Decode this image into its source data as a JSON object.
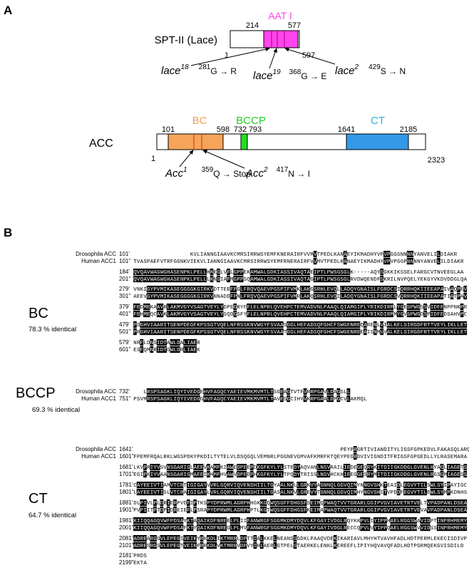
{
  "panelA": {
    "label": "A",
    "spt": {
      "name": "SPT-II (Lace)",
      "domain": "AAT I",
      "start": "1",
      "domainStart": "214",
      "domainEnd": "577",
      "end": "597",
      "mutants": [
        {
          "allele": "lace",
          "sup": "18",
          "pos": "281",
          "change": "G → R"
        },
        {
          "allele": "lace",
          "sup": "19",
          "pos": "368",
          "change": "G → E"
        },
        {
          "allele": "lace",
          "sup": "2",
          "pos": "429",
          "change": "S → N"
        }
      ]
    },
    "acc": {
      "name": "ACC",
      "domains": [
        "BC",
        "BCCP",
        "CT"
      ],
      "start": "1",
      "end": "2323",
      "boundaries": [
        "101",
        "598",
        "732",
        "793",
        "1641",
        "2185"
      ],
      "mutants": [
        {
          "allele": "Acc",
          "sup": "1",
          "pos": "359",
          "change": "Q → Stop"
        },
        {
          "allele": "Acc",
          "sup": "2",
          "pos": "417",
          "change": "N → I"
        }
      ]
    }
  },
  "panelB": {
    "label": "B",
    "sections": [
      {
        "domain": "BC",
        "identity": "78.3 % identical",
        "species": [
          "Drosophila ACC",
          "Human ACC1"
        ],
        "blocks": [
          [
            {
              "num": "101'",
              "seq": "                 KVLIANNGIAAVKCMRSIRRWSYEMFKNERAIRFVVMVTPEDLKANAEYIKMADHYVPVPGGSNNNNYANVELILDIAKR"
            },
            {
              "num": "101\"",
              "seq": "TVASPAEFVTRFGGNKVIEKVLIANNGIAAVKCMRSIRRWSYEMFRNERAIRFVVMVTPEDLKANAEYIKMADHYVPVPGGPNNNNYANVELILDIAKR"
            }
          ],
          [
            {
              "num": "184'",
              "seq": "QVQAVWAGWGHASENPKLPELLHKEGLVFLGPPEKAMWALGDKIASSIVAQTAEIPTLPWSGSGLK-----AQYSGKKIKSSELFARGCVTNVEEGLAA"
            },
            {
              "num": "201\"",
              "seq": "QVQAVWAGWGHASENPKLPELLLKNGIAFMGPPSQAMWALGDKIASSIVAQTAGIPTLPWSGSGLRVDWQENDFSKRILNVPQELYEKGYVKDVDDGLQA"
            }
          ],
          [
            {
              "num": "279'",
              "seq": "VNKIGYPVMIKASEGGGGKGIRKVDTTEEFPGLFRQVQAEVPGSPIFVMKLAKGSRHLEVQLLADQYGNAISLFGRDCSIQRRHQKIIEEAPAIVAQPEV"
            },
            {
              "num": "301\"",
              "seq": "AEEVGYPVMIKASEGGGGKGIRKVNNADDFPNLFRQVQAEVPGSPIFVMRLAKQSRHLEVQILADQYGNAISLFGRDCSVQRRHQKIIEEAPATIATPAV"
            }
          ],
          [
            {
              "num": "379'",
              "seq": "FEDMEKAAVRLAKMVGYVSAGTVEYLYDPEGRYFFLELNPRLQVEHPCTEMVADVNLPAAQLQIAMGIPLYRIKDIRMLYGESPWGSSVIDFENPPNKPR"
            },
            {
              "num": "401\"",
              "seq": "FEHMEQCAVKLAKMVGYVSAGTVEYLYSQDGSFYFLELNPRLQVEHPCTEMVADVNLPAAQLQIAMGIPLYRIKDIRMMYGVSPWGDSPIDFEDSAHVPC"
            }
          ],
          [
            {
              "num": "479'",
              "seq": "PSGHVIAARITSENPDEGFKPSSGTVQELNFRSSKNVWGYFSVAASGGLHEFADSQFGHCFSWGENREQARENLVIALKELSIRGDFRTTVEYLIKLLET"
            },
            {
              "num": "501\"",
              "seq": "PRGHVIAARITSENPDEGFKPSSGTVQELNFRSSKNVWGYFSVAATGGLHEFADSQFGHCFSWGENREEAISNMVVALKELSIRGDFRTTVEYLIKLLET"
            }
          ],
          [
            {
              "num": "579'",
              "seq": "NRFLDNSIDTAWLDALIAER"
            },
            {
              "num": "601\"",
              "seq": "ESFQMNRIDTGWLDRLIAEK"
            }
          ]
        ]
      },
      {
        "domain": "BCCP",
        "identity": "69.3 % identical",
        "species": [
          "Drosophila ACC",
          "Human ACC1"
        ],
        "blocks": [
          [
            {
              "num": "732'",
              "seq": "   LRSPSAGKLIQYIVEDGEHVFAGQCYAEIEVMKMVMTLTSGEAGTVTFVRRPGAVLDAGSLL"
            },
            {
              "num": "751\"",
              "seq": "PSVMRSPSAGKLIQYIVEDGGHVFAGQCYAEIEVMKMVMTLTAVESGCIHYVKRPGAALDPGCVLAKMQL"
            }
          ]
        ]
      },
      {
        "domain": "CT",
        "identity": "64.7 % identical",
        "species": [
          "Drosophila ACC",
          "Human ACC1"
        ],
        "blocks": [
          [
            {
              "num": "1641'",
              "seq": "                                                              PEYPRGRTIVIANDITYLIGSFGPKEDVLFAKASQLARQ"
            },
            {
              "num": "1601\"",
              "seq": "FPEMFRQALRKLWGSPDKYPKDILTYTELVLDSQGQLVEMNRLPGGNEVGMVAFKMRFKTQEYPEGRDVIVIGNDITFRIGSFGPGEDLLYLRASEMARA"
            }
          ],
          [
            {
              "num": "1681'",
              "seq": "LKVPRIYVSVNSGARIGLAEEVKAMFKIAWEDPEEPDKGFKYLYLSTEDYAQVANLNSVRAILIEDEGEQRYKITDIIGKDDGLGVENLRYAGLIAGETS"
            },
            {
              "num": "1701\"",
              "seq": "EGIPKIYVAANSGARIGMAEEIKHMFHVAWVDPEDPHKGFKYLYLTPQDYTRISSLNSVHCKHIEEGGESRYMITDIIGKDDGLGVENLRGSGMIAGESS"
            }
          ],
          [
            {
              "num": "1781'",
              "seq": "CAYEEIVTIAMVTCRTIGIGAYVVRLGQRVIQVENSHIILTGYAALNKLLGRKVYASNNQLGGVQIMYNNGVSHKTEAIDLEGVYTILSWLSYIPAYIGC"
            },
            {
              "num": "1801\"",
              "seq": "LAYEEIVTISLVTCRAIGIGAYLVRLGQRVIQVENSHIILTGASALNKVLGREVYTSNNQLGGVQIMHYNGVSHITVPDDFEGVYTILEWLSYMPKDNHS"
            }
          ],
          [
            {
              "num": "1881'",
              "seq": "DLPIVLPLDRIERPVDFIPTKSPYDPRWMLAGRPHHGKKGQWQSGFFDHGSFSEIMQPWAQTVVTGRARLGGIPVGVIAVETRTVELTVPADPANLDSEA"
            },
            {
              "num": "1901\"",
              "seq": "PVPIITPTDPIDREIEFLPSRAPYDPRWMLAGRPHPTLKGTWQSGFFDHGSFKEIMAPWAQTVVTGRARLGGIPVGVIAVETRTVEVAVPADPANLDSEA"
            }
          ],
          [
            {
              "num": "1981'",
              "seq": "KIIQQAGQVWFPDSAYKTAQAIKDFNREELPLIIFANWRGFSGGMKDMYDQVLKFGAYIVDGLRQYKKPVLIYIPPHAELRGGSWAVIDPTINPRHMEMY"
            },
            {
              "num": "2001\"",
              "seq": "KIIQQAGQVWFPDSAFKTYQAIKDFNREGLPLMVFANWRGFSGGMKDMYDQVLKFGAYIVDGLRECCQPVLVYIPPQAELRGGSWVVIDSSINPRHMEMY"
            }
          ],
          [
            {
              "num": "2081'",
              "seq": "ADREARGGVLEPEGIVEIKYRKKDLIKTMRRLDPTTIALKKELNEANSSGDKLPAAQVDEKIKARIAVLMHYHTVAVHFADLHDTPERMLEKECISDIVP"
            },
            {
              "num": "2101\"",
              "seq": "ADRESRGSVLEPEGTVEIKFRRKDLVKTMRRVDPVYIHLAERLGTPELSTAERKELENKLKEREEFLIPIYHQVAVQFADLHDTPGRMQEKGVISDILD"
            }
          ],
          [
            {
              "num": "2181'",
              "seq": "PRDS"
            },
            {
              "num": "2199\"",
              "seq": "EKTA"
            }
          ]
        ]
      }
    ]
  }
}
